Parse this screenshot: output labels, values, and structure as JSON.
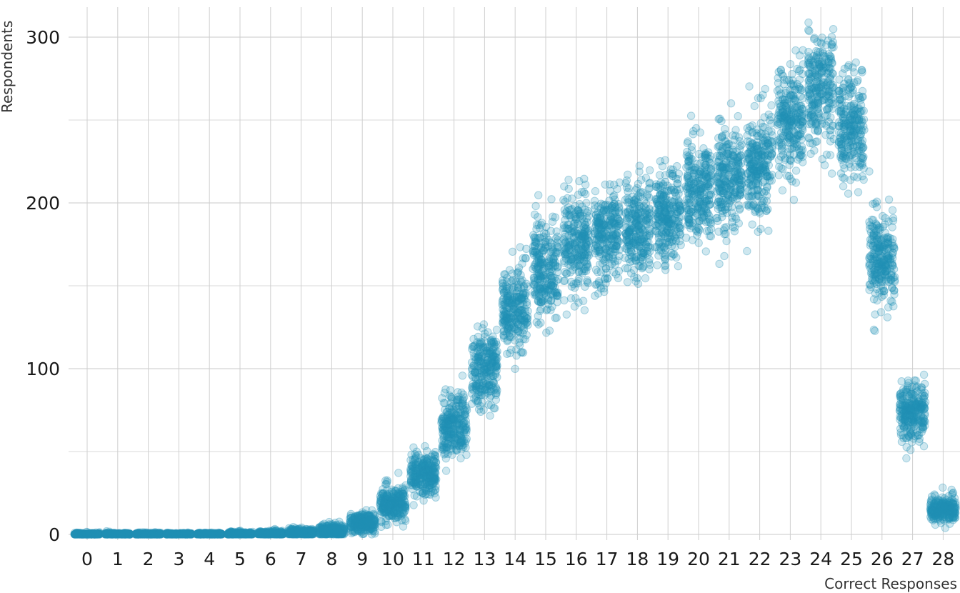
{
  "chart_data": {
    "type": "scatter",
    "title": "",
    "xlabel": "Correct Responses",
    "ylabel": "Respondents",
    "x_categories": [
      "0",
      "1",
      "2",
      "3",
      "4",
      "5",
      "6",
      "7",
      "8",
      "9",
      "10",
      "11",
      "12",
      "13",
      "14",
      "15",
      "16",
      "17",
      "18",
      "19",
      "20",
      "21",
      "22",
      "23",
      "24",
      "25",
      "26",
      "27",
      "28"
    ],
    "y_ticks": [
      0,
      100,
      200,
      300
    ],
    "ylim": [
      0,
      315
    ],
    "grid": true,
    "point_color": "#2190b5",
    "group_centers": [
      0,
      0,
      0,
      0,
      0,
      0.3,
      0.5,
      1,
      2,
      7,
      18,
      37,
      66,
      100,
      137,
      160,
      175,
      180,
      185,
      192,
      207,
      213,
      225,
      250,
      268,
      245,
      166,
      74,
      15
    ],
    "group_spread": [
      0.5,
      0.5,
      0.5,
      0.5,
      0.5,
      0.6,
      0.8,
      1.2,
      2,
      3,
      5,
      6.5,
      9,
      11,
      13,
      14,
      14,
      14,
      14,
      14,
      15,
      15,
      16,
      16,
      18,
      16,
      14,
      9,
      4
    ]
  }
}
